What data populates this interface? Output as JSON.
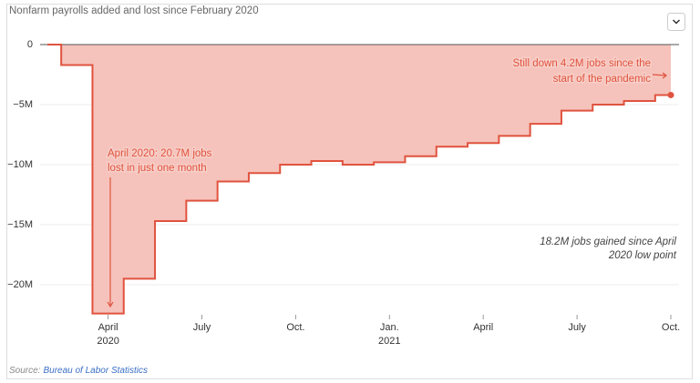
{
  "chart_data": {
    "type": "step-area",
    "title": "Nonfarm payrolls added and lost since February 2020",
    "x": [
      "2020-02",
      "2020-03",
      "2020-04",
      "2020-05",
      "2020-06",
      "2020-07",
      "2020-08",
      "2020-09",
      "2020-10",
      "2020-11",
      "2020-12",
      "2021-01",
      "2021-02",
      "2021-03",
      "2021-04",
      "2021-05",
      "2021-06",
      "2021-07",
      "2021-08",
      "2021-09",
      "2021-10"
    ],
    "values": [
      0,
      -1700000,
      -22400000,
      -19500000,
      -14700000,
      -13000000,
      -11400000,
      -10700000,
      -10000000,
      -9700000,
      -10000000,
      -9800000,
      -9300000,
      -8500000,
      -8200000,
      -7600000,
      -6600000,
      -5500000,
      -5000000,
      -4700000,
      -4200000
    ],
    "color": "#e0533f",
    "fill": "#f5c3bb",
    "xlim": [
      "2020-02",
      "2021-10"
    ],
    "xticks": [
      {
        "value": "2020-04",
        "label": "April"
      },
      {
        "value": "2020-07",
        "label": "July"
      },
      {
        "value": "2020-10",
        "label": "Oct."
      },
      {
        "value": "2021-01",
        "label": "Jan."
      },
      {
        "value": "2021-04",
        "label": "April"
      },
      {
        "value": "2021-07",
        "label": "July"
      },
      {
        "value": "2021-10",
        "label": "Oct."
      }
    ],
    "xtick_years": [
      {
        "value": "2020-04",
        "label": "2020"
      },
      {
        "value": "2021-01",
        "label": "2021"
      }
    ],
    "ylim": [
      -22500000,
      1000000
    ],
    "yticks": [
      {
        "value": 0,
        "label": "0"
      },
      {
        "value": -5000000,
        "label": "−5M"
      },
      {
        "value": -10000000,
        "label": "−10M"
      },
      {
        "value": -15000000,
        "label": "−15M"
      },
      {
        "value": -20000000,
        "label": "−20M"
      }
    ],
    "grid": true,
    "annotations": [
      {
        "lines": [
          "Still down 4.2M jobs since the",
          "start of the pandemic"
        ]
      },
      {
        "lines": [
          "April 2020: 20.7M jobs",
          "lost in just one month"
        ]
      },
      {
        "lines": [
          "18.2M jobs gained since April",
          "2020 low point"
        ]
      }
    ]
  },
  "source": {
    "label": "Source:",
    "text": "Bureau of Labor Statistics"
  }
}
